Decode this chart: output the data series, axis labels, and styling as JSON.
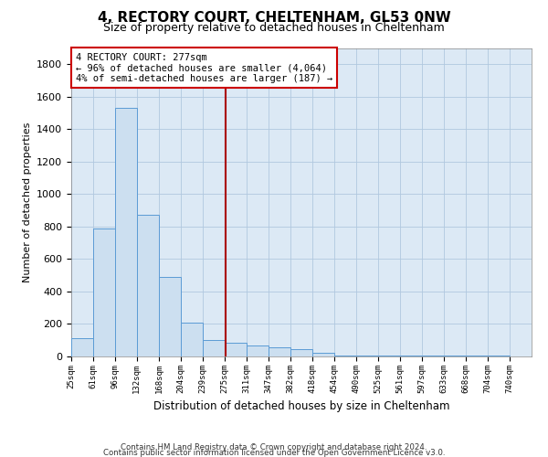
{
  "title": "4, RECTORY COURT, CHELTENHAM, GL53 0NW",
  "subtitle": "Size of property relative to detached houses in Cheltenham",
  "xlabel": "Distribution of detached houses by size in Cheltenham",
  "ylabel": "Number of detached properties",
  "footnote1": "Contains HM Land Registry data © Crown copyright and database right 2024.",
  "footnote2": "Contains public sector information licensed under the Open Government Licence v3.0.",
  "annotation_line1": "4 RECTORY COURT: 277sqm",
  "annotation_line2": "← 96% of detached houses are smaller (4,064)",
  "annotation_line3": "4% of semi-detached houses are larger (187) →",
  "property_sqm": 277,
  "bar_color": "#ccdff0",
  "bar_edge_color": "#5b9bd5",
  "vline_color": "#aa0000",
  "annotation_box_edgecolor": "#cc0000",
  "plot_bg_color": "#dce9f5",
  "grid_color": "#b0c8df",
  "categories": [
    "25sqm",
    "61sqm",
    "96sqm",
    "132sqm",
    "168sqm",
    "204sqm",
    "239sqm",
    "275sqm",
    "311sqm",
    "347sqm",
    "382sqm",
    "418sqm",
    "454sqm",
    "490sqm",
    "525sqm",
    "561sqm",
    "597sqm",
    "633sqm",
    "668sqm",
    "704sqm",
    "740sqm"
  ],
  "bin_edges": [
    25,
    61,
    96,
    132,
    168,
    204,
    239,
    275,
    311,
    347,
    382,
    418,
    454,
    490,
    525,
    561,
    597,
    633,
    668,
    704,
    740,
    776
  ],
  "values": [
    110,
    790,
    1530,
    870,
    490,
    210,
    100,
    85,
    65,
    55,
    45,
    20,
    5,
    5,
    5,
    5,
    3,
    3,
    3,
    3,
    2
  ],
  "ylim": [
    0,
    1900
  ],
  "yticks": [
    0,
    200,
    400,
    600,
    800,
    1000,
    1200,
    1400,
    1600,
    1800
  ]
}
